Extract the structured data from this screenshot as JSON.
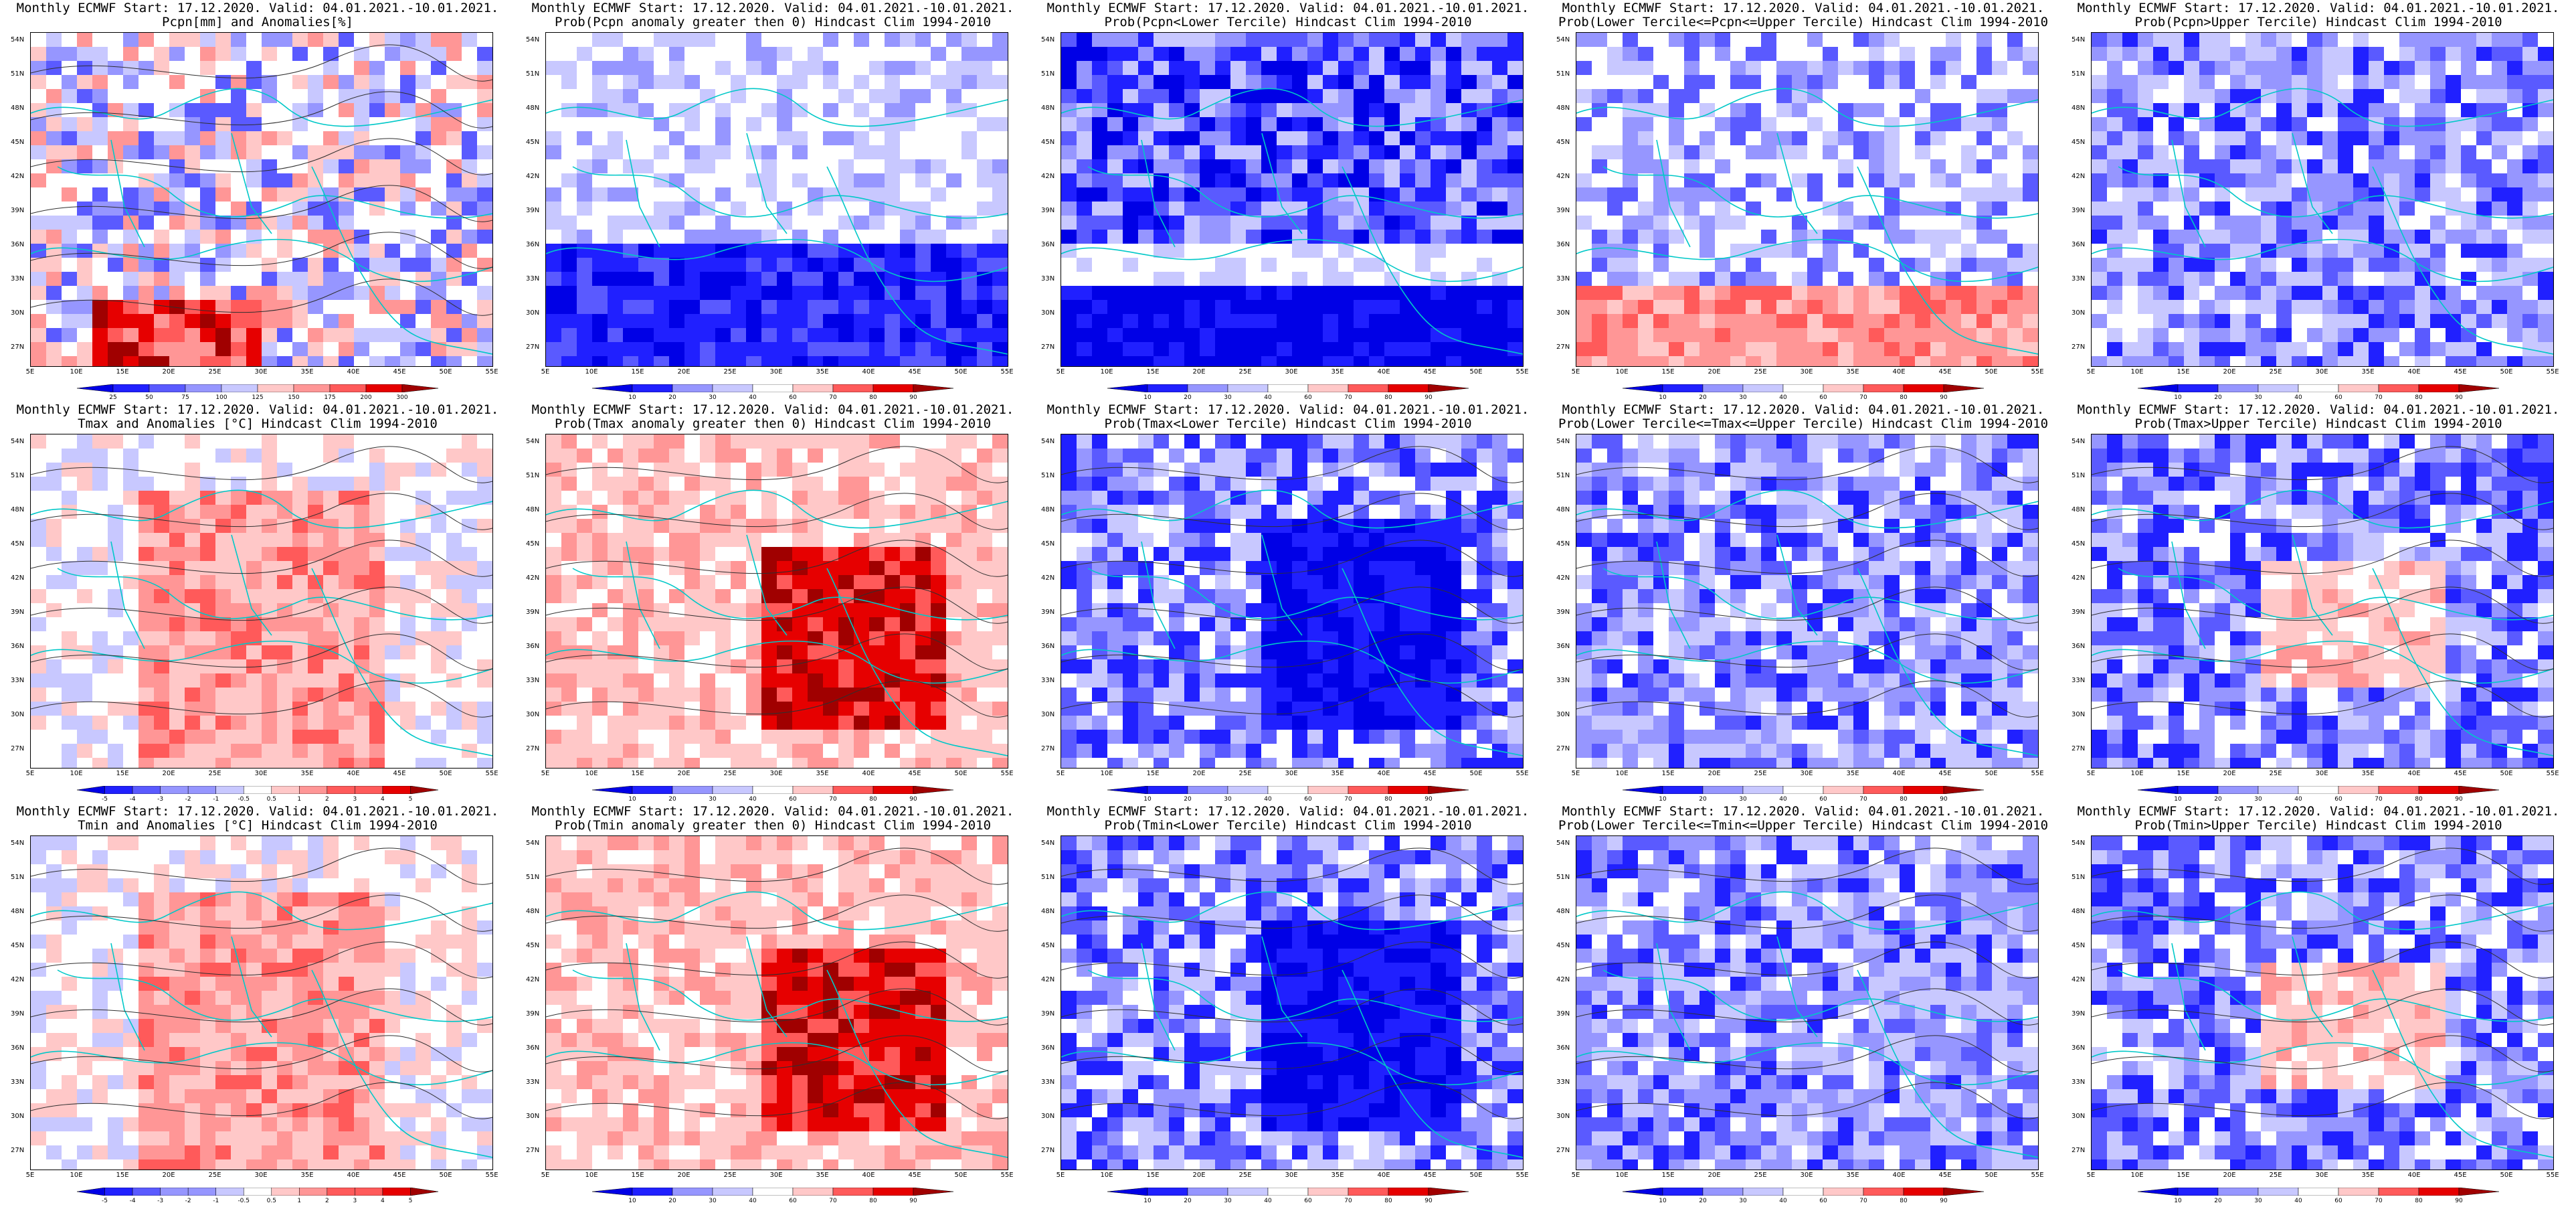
{
  "panels": [
    {
      "t1": "Monthly ECMWF Start: 17.12.2020. Valid: 04.01.2021.-10.01.2021.",
      "t2": "Pcpn[mm] and Anomalies[%]",
      "scale": "pcpn_anom",
      "theme": "mixed_red_south",
      "colorbar": [
        "25",
        "50",
        "75",
        "100",
        "125",
        "150",
        "175",
        "200",
        "300"
      ]
    },
    {
      "t1": "Monthly ECMWF Start: 17.12.2020. Valid: 04.01.2021.-10.01.2021.",
      "t2": "Prob(Pcpn anomaly greater then 0) Hindcast Clim 1994-2010",
      "scale": "prob",
      "theme": "blue_south",
      "colorbar": [
        "10",
        "20",
        "30",
        "40",
        "60",
        "70",
        "80",
        "90"
      ]
    },
    {
      "t1": "Monthly ECMWF Start: 17.12.2020. Valid: 04.01.2021.-10.01.2021.",
      "t2": "Prob(Pcpn<Lower Tercile) Hindcast Clim 1994-2010",
      "scale": "prob",
      "theme": "deep_blue",
      "colorbar": [
        "10",
        "20",
        "30",
        "40",
        "60",
        "70",
        "80",
        "90"
      ]
    },
    {
      "t1": "Monthly ECMWF Start: 17.12.2020. Valid: 04.01.2021.-10.01.2021.",
      "t2": "Prob(Lower Tercile<=Pcpn<=Upper Tercile) Hindcast Clim 1994-2010",
      "scale": "prob",
      "theme": "blue_red_south",
      "colorbar": [
        "10",
        "20",
        "30",
        "40",
        "60",
        "70",
        "80",
        "90"
      ]
    },
    {
      "t1": "Monthly ECMWF Start: 17.12.2020. Valid: 04.01.2021.-10.01.2021.",
      "t2": "Prob(Pcpn>Upper Tercile) Hindcast Clim 1994-2010",
      "scale": "prob",
      "theme": "blue",
      "colorbar": [
        "10",
        "20",
        "30",
        "40",
        "60",
        "70",
        "80",
        "90"
      ]
    },
    {
      "t1": "Monthly ECMWF Start: 17.12.2020. Valid: 04.01.2021.-10.01.2021.",
      "t2": "Tmax and Anomalies [°C] Hindcast Clim 1994-2010",
      "scale": "temp_anom",
      "theme": "light_red",
      "colorbar": [
        "-5",
        "-4",
        "-3",
        "-2",
        "-1",
        "-0.5",
        "0.5",
        "1",
        "2",
        "3",
        "4",
        "5"
      ]
    },
    {
      "t1": "Monthly ECMWF Start: 17.12.2020. Valid: 04.01.2021.-10.01.2021.",
      "t2": "Prob(Tmax anomaly greater then 0) Hindcast Clim 1994-2010",
      "scale": "prob",
      "theme": "red_east",
      "colorbar": [
        "10",
        "20",
        "30",
        "40",
        "60",
        "70",
        "80",
        "90"
      ]
    },
    {
      "t1": "Monthly ECMWF Start: 17.12.2020. Valid: 04.01.2021.-10.01.2021.",
      "t2": "Prob(Tmax<Lower Tercile) Hindcast Clim 1994-2010",
      "scale": "prob",
      "theme": "blue_center",
      "colorbar": [
        "10",
        "20",
        "30",
        "40",
        "60",
        "70",
        "80",
        "90"
      ]
    },
    {
      "t1": "Monthly ECMWF Start: 17.12.2020. Valid: 04.01.2021.-10.01.2021.",
      "t2": "Prob(Lower Tercile<=Tmax<=Upper Tercile) Hindcast Clim 1994-2010",
      "scale": "prob",
      "theme": "blue",
      "colorbar": [
        "10",
        "20",
        "30",
        "40",
        "60",
        "70",
        "80",
        "90"
      ]
    },
    {
      "t1": "Monthly ECMWF Start: 17.12.2020. Valid: 04.01.2021.-10.01.2021.",
      "t2": "Prob(Tmax>Upper Tercile) Hindcast Clim 1994-2010",
      "scale": "prob",
      "theme": "blue_redspots",
      "colorbar": [
        "10",
        "20",
        "30",
        "40",
        "60",
        "70",
        "80",
        "90"
      ]
    },
    {
      "t1": "Monthly ECMWF Start: 17.12.2020. Valid: 04.01.2021.-10.01.2021.",
      "t2": "Tmin and Anomalies [°C] Hindcast Clim 1994-2010",
      "scale": "temp_anom",
      "theme": "light_red",
      "colorbar": [
        "-5",
        "-4",
        "-3",
        "-2",
        "-1",
        "-0.5",
        "0.5",
        "1",
        "2",
        "3",
        "4",
        "5"
      ]
    },
    {
      "t1": "Monthly ECMWF Start: 17.12.2020. Valid: 04.01.2021.-10.01.2021.",
      "t2": "Prob(Tmin anomaly greater then 0) Hindcast Clim 1994-2010",
      "scale": "prob",
      "theme": "red_east",
      "colorbar": [
        "10",
        "20",
        "30",
        "40",
        "60",
        "70",
        "80",
        "90"
      ]
    },
    {
      "t1": "Monthly ECMWF Start: 17.12.2020. Valid: 04.01.2021.-10.01.2021.",
      "t2": "Prob(Tmin<Lower Tercile) Hindcast Clim 1994-2010",
      "scale": "prob",
      "theme": "blue_center",
      "colorbar": [
        "10",
        "20",
        "30",
        "40",
        "60",
        "70",
        "80",
        "90"
      ]
    },
    {
      "t1": "Monthly ECMWF Start: 17.12.2020. Valid: 04.01.2021.-10.01.2021.",
      "t2": "Prob(Lower Tercile<=Tmin<=Upper Tercile) Hindcast Clim 1994-2010",
      "scale": "prob",
      "theme": "blue",
      "colorbar": [
        "10",
        "20",
        "30",
        "40",
        "60",
        "70",
        "80",
        "90"
      ]
    },
    {
      "t1": "Monthly ECMWF Start: 17.12.2020. Valid: 04.01.2021.-10.01.2021.",
      "t2": "Prob(Tmin>Upper Tercile) Hindcast Clim 1994-2010",
      "scale": "prob",
      "theme": "blue_redspots",
      "colorbar": [
        "10",
        "20",
        "30",
        "40",
        "60",
        "70",
        "80",
        "90"
      ]
    }
  ],
  "lat_labels": [
    "54N",
    "51N",
    "48N",
    "45N",
    "42N",
    "39N",
    "36N",
    "33N",
    "30N",
    "27N"
  ],
  "lon_labels": [
    "5E",
    "10E",
    "15E",
    "20E",
    "25E",
    "30E",
    "35E",
    "40E",
    "45E",
    "50E",
    "55E"
  ],
  "colors": {
    "prob_ramp": [
      "#0000e6",
      "#2020ff",
      "#5a5aff",
      "#9696ff",
      "#c8c8ff",
      "#ffffff",
      "#ffc8c8",
      "#ff9696",
      "#ff5a5a",
      "#e60000",
      "#a00000"
    ],
    "coast": "#00c8c8"
  }
}
